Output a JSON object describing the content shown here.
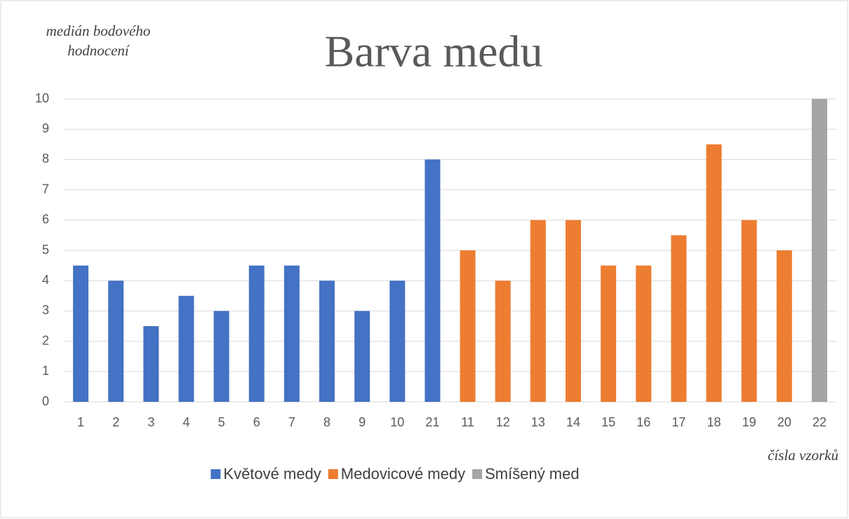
{
  "chart_data": {
    "type": "bar",
    "title": "Barva medu",
    "y_label": "medián bodového hodnocení",
    "x_label": "čísla vzorků",
    "categories": [
      "1",
      "2",
      "3",
      "4",
      "5",
      "6",
      "7",
      "8",
      "9",
      "10",
      "21",
      "11",
      "12",
      "13",
      "14",
      "15",
      "16",
      "17",
      "18",
      "19",
      "20",
      "22"
    ],
    "series": [
      {
        "name": "Květové medy",
        "color": "#4472c4",
        "values": [
          4.5,
          4,
          2.5,
          3.5,
          3,
          4.5,
          4.5,
          4,
          3,
          4,
          8,
          null,
          null,
          null,
          null,
          null,
          null,
          null,
          null,
          null,
          null,
          null
        ]
      },
      {
        "name": "Medovicové medy",
        "color": "#ed7d31",
        "values": [
          null,
          null,
          null,
          null,
          null,
          null,
          null,
          null,
          null,
          null,
          null,
          5,
          4,
          6,
          6,
          4.5,
          4.5,
          5.5,
          8.5,
          6,
          5,
          null
        ]
      },
      {
        "name": "Smíšený med",
        "color": "#a5a5a5",
        "values": [
          null,
          null,
          null,
          null,
          null,
          null,
          null,
          null,
          null,
          null,
          null,
          null,
          null,
          null,
          null,
          null,
          null,
          null,
          null,
          null,
          null,
          10
        ]
      }
    ],
    "ylim": [
      0,
      10
    ],
    "yticks": [
      0,
      1,
      2,
      3,
      4,
      5,
      6,
      7,
      8,
      9,
      10
    ],
    "grid": true,
    "legend": "bottom"
  }
}
